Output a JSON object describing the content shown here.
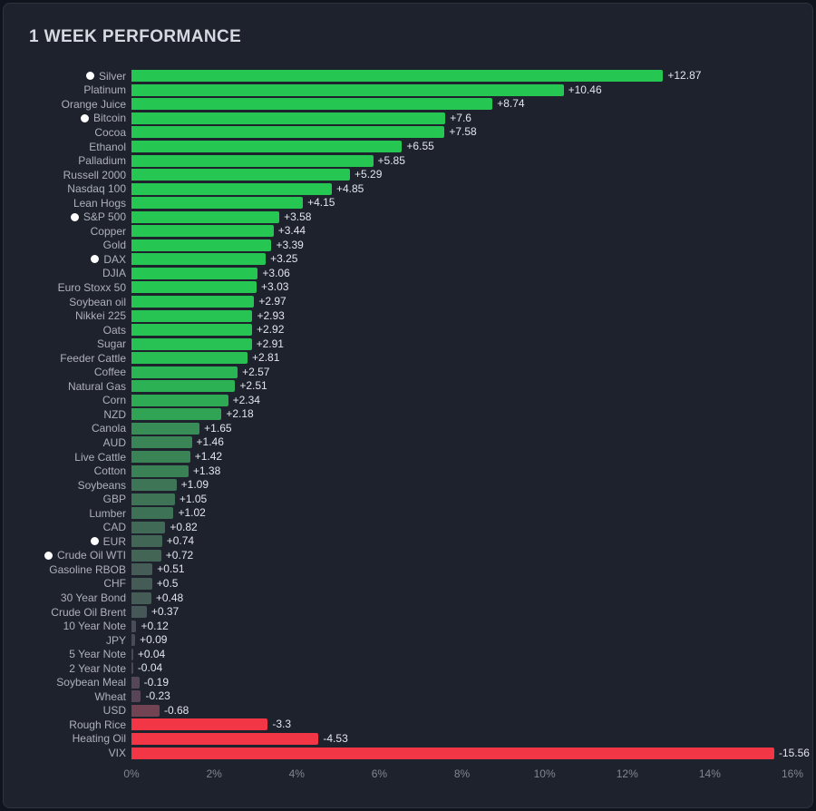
{
  "panel": {
    "title": "1 WEEK PERFORMANCE"
  },
  "colors": {
    "panel_bg": "#1e222d",
    "outer_bg": "#10141d",
    "border": "#2f3340",
    "positive": "#26c653",
    "negative": "#f23645",
    "neutral": "#4b4757",
    "label_text": "#aeb1bb",
    "value_text": "#e2e5ec",
    "axis_text": "#82868f",
    "marker": "#ffffff"
  },
  "chart_data": {
    "type": "bar",
    "orientation": "horizontal",
    "title": "1 WEEK PERFORMANCE",
    "xlabel": "",
    "ylabel": "",
    "x_axis": {
      "min": 0,
      "max": 16,
      "unit": "%",
      "ticks": [
        "0%",
        "2%",
        "4%",
        "6%",
        "8%",
        "10%",
        "12%",
        "14%",
        "16%"
      ]
    },
    "note": "Bars plot absolute value of weekly change; color encodes sign and magnitude",
    "color_scale_span": 3,
    "items": [
      {
        "name": "Silver",
        "value": 12.87,
        "label": "+12.87",
        "marked": true
      },
      {
        "name": "Platinum",
        "value": 10.46,
        "label": "+10.46",
        "marked": false
      },
      {
        "name": "Orange Juice",
        "value": 8.74,
        "label": "+8.74",
        "marked": false
      },
      {
        "name": "Bitcoin",
        "value": 7.6,
        "label": "+7.6",
        "marked": true
      },
      {
        "name": "Cocoa",
        "value": 7.58,
        "label": "+7.58",
        "marked": false
      },
      {
        "name": "Ethanol",
        "value": 6.55,
        "label": "+6.55",
        "marked": false
      },
      {
        "name": "Palladium",
        "value": 5.85,
        "label": "+5.85",
        "marked": false
      },
      {
        "name": "Russell 2000",
        "value": 5.29,
        "label": "+5.29",
        "marked": false
      },
      {
        "name": "Nasdaq 100",
        "value": 4.85,
        "label": "+4.85",
        "marked": false
      },
      {
        "name": "Lean Hogs",
        "value": 4.15,
        "label": "+4.15",
        "marked": false
      },
      {
        "name": "S&P 500",
        "value": 3.58,
        "label": "+3.58",
        "marked": true
      },
      {
        "name": "Copper",
        "value": 3.44,
        "label": "+3.44",
        "marked": false
      },
      {
        "name": "Gold",
        "value": 3.39,
        "label": "+3.39",
        "marked": false
      },
      {
        "name": "DAX",
        "value": 3.25,
        "label": "+3.25",
        "marked": true
      },
      {
        "name": "DJIA",
        "value": 3.06,
        "label": "+3.06",
        "marked": false
      },
      {
        "name": "Euro Stoxx 50",
        "value": 3.03,
        "label": "+3.03",
        "marked": false
      },
      {
        "name": "Soybean oil",
        "value": 2.97,
        "label": "+2.97",
        "marked": false
      },
      {
        "name": "Nikkei 225",
        "value": 2.93,
        "label": "+2.93",
        "marked": false
      },
      {
        "name": "Oats",
        "value": 2.92,
        "label": "+2.92",
        "marked": false
      },
      {
        "name": "Sugar",
        "value": 2.91,
        "label": "+2.91",
        "marked": false
      },
      {
        "name": "Feeder Cattle",
        "value": 2.81,
        "label": "+2.81",
        "marked": false
      },
      {
        "name": "Coffee",
        "value": 2.57,
        "label": "+2.57",
        "marked": false
      },
      {
        "name": "Natural Gas",
        "value": 2.51,
        "label": "+2.51",
        "marked": false
      },
      {
        "name": "Corn",
        "value": 2.34,
        "label": "+2.34",
        "marked": false
      },
      {
        "name": "NZD",
        "value": 2.18,
        "label": "+2.18",
        "marked": false
      },
      {
        "name": "Canola",
        "value": 1.65,
        "label": "+1.65",
        "marked": false
      },
      {
        "name": "AUD",
        "value": 1.46,
        "label": "+1.46",
        "marked": false
      },
      {
        "name": "Live Cattle",
        "value": 1.42,
        "label": "+1.42",
        "marked": false
      },
      {
        "name": "Cotton",
        "value": 1.38,
        "label": "+1.38",
        "marked": false
      },
      {
        "name": "Soybeans",
        "value": 1.09,
        "label": "+1.09",
        "marked": false
      },
      {
        "name": "GBP",
        "value": 1.05,
        "label": "+1.05",
        "marked": false
      },
      {
        "name": "Lumber",
        "value": 1.02,
        "label": "+1.02",
        "marked": false
      },
      {
        "name": "CAD",
        "value": 0.82,
        "label": "+0.82",
        "marked": false
      },
      {
        "name": "EUR",
        "value": 0.74,
        "label": "+0.74",
        "marked": true
      },
      {
        "name": "Crude Oil WTI",
        "value": 0.72,
        "label": "+0.72",
        "marked": true
      },
      {
        "name": "Gasoline RBOB",
        "value": 0.51,
        "label": "+0.51",
        "marked": false
      },
      {
        "name": "CHF",
        "value": 0.5,
        "label": "+0.5",
        "marked": false
      },
      {
        "name": "30 Year Bond",
        "value": 0.48,
        "label": "+0.48",
        "marked": false
      },
      {
        "name": "Crude Oil Brent",
        "value": 0.37,
        "label": "+0.37",
        "marked": false
      },
      {
        "name": "10 Year Note",
        "value": 0.12,
        "label": "+0.12",
        "marked": false
      },
      {
        "name": "JPY",
        "value": 0.09,
        "label": "+0.09",
        "marked": false
      },
      {
        "name": "5 Year Note",
        "value": 0.04,
        "label": "+0.04",
        "marked": false
      },
      {
        "name": "2 Year Note",
        "value": -0.04,
        "label": "-0.04",
        "marked": false
      },
      {
        "name": "Soybean Meal",
        "value": -0.19,
        "label": "-0.19",
        "marked": false
      },
      {
        "name": "Wheat",
        "value": -0.23,
        "label": "-0.23",
        "marked": false
      },
      {
        "name": "USD",
        "value": -0.68,
        "label": "-0.68",
        "marked": false
      },
      {
        "name": "Rough Rice",
        "value": -3.3,
        "label": "-3.3",
        "marked": false
      },
      {
        "name": "Heating Oil",
        "value": -4.53,
        "label": "-4.53",
        "marked": false
      },
      {
        "name": "VIX",
        "value": -15.56,
        "label": "-15.56",
        "marked": false
      }
    ]
  }
}
